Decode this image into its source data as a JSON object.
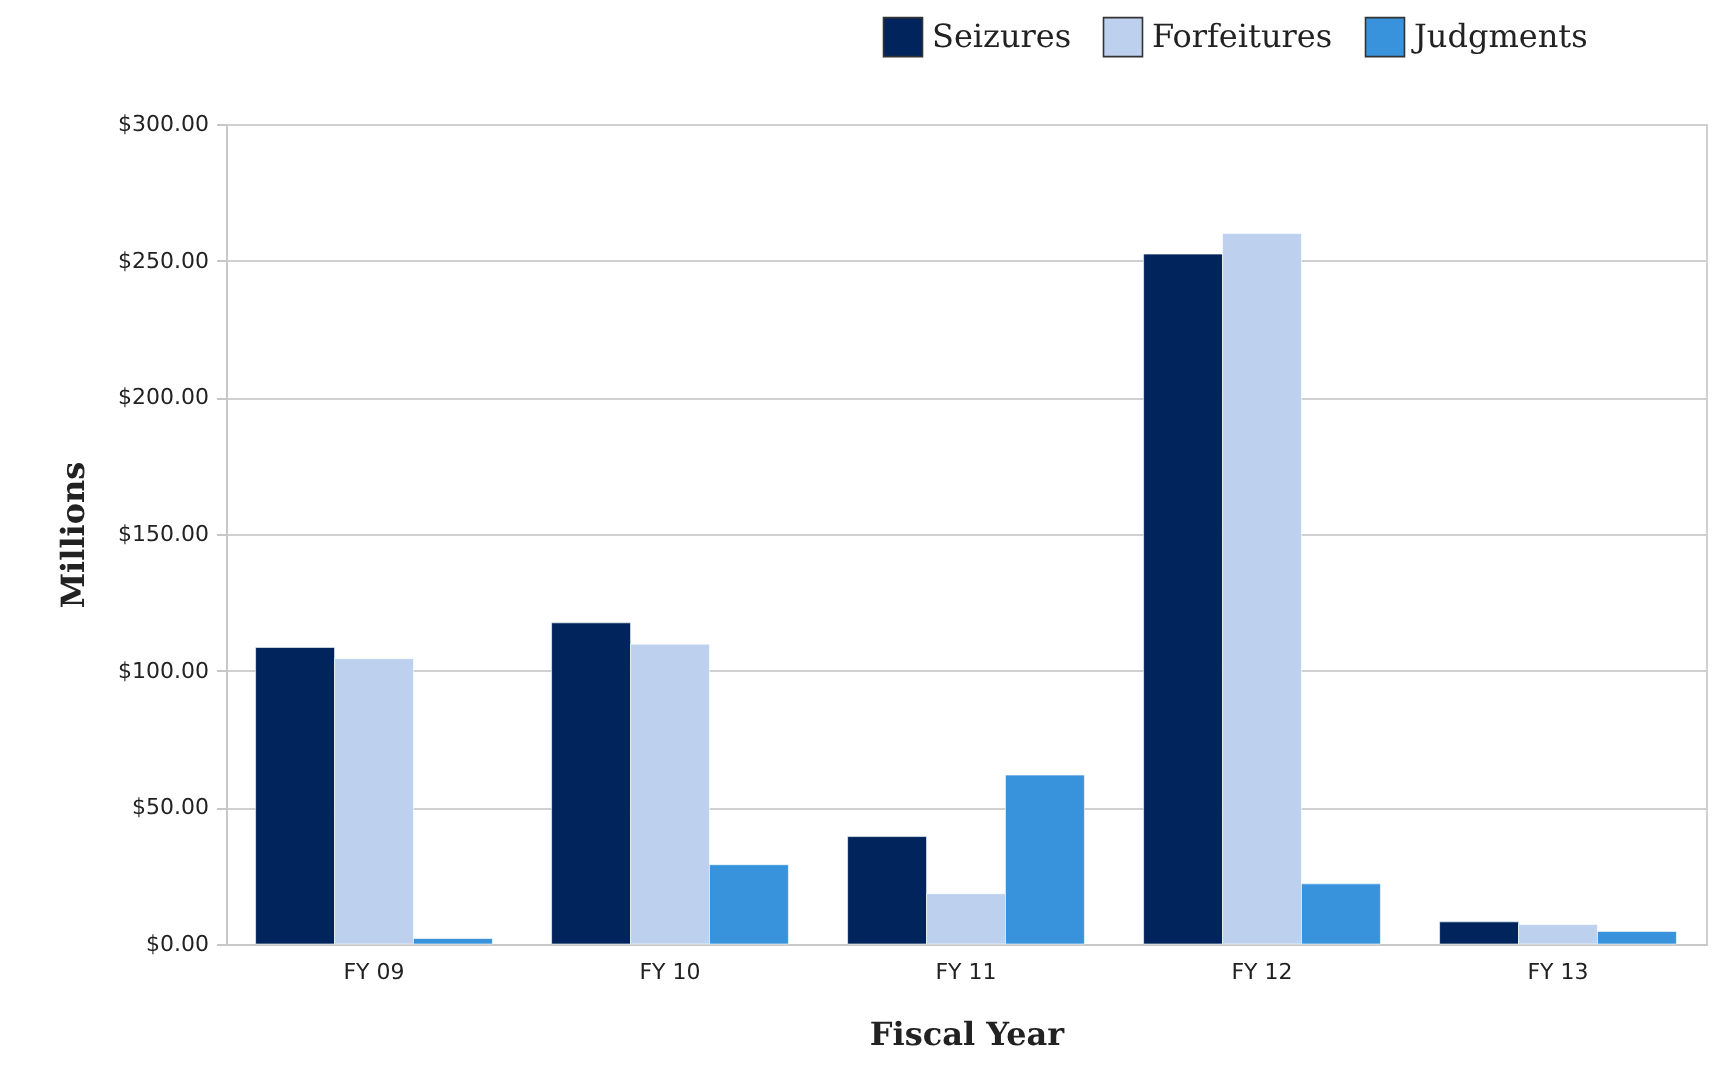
{
  "chart_data": {
    "type": "bar",
    "xlabel": "Fiscal Year",
    "ylabel": "Millions",
    "categories": [
      "FY 09",
      "FY 10",
      "FY 11",
      "FY 12",
      "FY 13"
    ],
    "series": [
      {
        "name": "Seizures",
        "color": "#00245b",
        "values": [
          108.5,
          117.5,
          39.3,
          252.4,
          8.1
        ]
      },
      {
        "name": "Forfeitures",
        "color": "#bdd1ef",
        "values": [
          104.4,
          109.7,
          18.4,
          259.9,
          7.1
        ]
      },
      {
        "name": "Judgments",
        "color": "#3893dc",
        "values": [
          2,
          29,
          61.8,
          22,
          4.6
        ]
      }
    ],
    "ylim": [
      0,
      300
    ],
    "yticks": [
      {
        "value": 0,
        "label": "$0.00"
      },
      {
        "value": 50,
        "label": "$50.00"
      },
      {
        "value": 100,
        "label": "$100.00"
      },
      {
        "value": 150,
        "label": "$150.00"
      },
      {
        "value": 200,
        "label": "$200.00"
      },
      {
        "value": 250,
        "label": "$250.00"
      },
      {
        "value": 300,
        "label": "$300.00"
      }
    ],
    "grid": "y",
    "legend": "top right"
  }
}
